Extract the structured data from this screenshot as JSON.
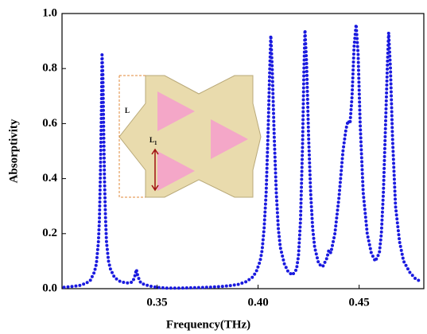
{
  "chart_data": {
    "type": "line",
    "xlabel": "Frequency(THz)",
    "ylabel": "Absorptivity",
    "x": [
      0.304,
      0.308,
      0.312,
      0.315,
      0.317,
      0.319,
      0.32,
      0.321,
      0.3215,
      0.322,
      0.3225,
      0.3228,
      0.3232,
      0.3236,
      0.324,
      0.3245,
      0.325,
      0.326,
      0.327,
      0.329,
      0.332,
      0.336,
      0.338,
      0.339,
      0.3398,
      0.3405,
      0.342,
      0.346,
      0.35,
      0.355,
      0.36,
      0.365,
      0.37,
      0.375,
      0.38,
      0.385,
      0.39,
      0.394,
      0.397,
      0.399,
      0.401,
      0.402,
      0.403,
      0.404,
      0.405,
      0.4057,
      0.4063,
      0.407,
      0.408,
      0.409,
      0.41,
      0.411,
      0.413,
      0.415,
      0.417,
      0.419,
      0.42,
      0.421,
      0.422,
      0.4227,
      0.4232,
      0.424,
      0.425,
      0.426,
      0.427,
      0.428,
      0.43,
      0.432,
      0.434,
      0.435,
      0.436,
      0.438,
      0.44,
      0.442,
      0.4435,
      0.4445,
      0.4455,
      0.4465,
      0.4475,
      0.4485,
      0.4495,
      0.4505,
      0.452,
      0.454,
      0.456,
      0.458,
      0.46,
      0.461,
      0.462,
      0.463,
      0.464,
      0.4646,
      0.4655,
      0.4665,
      0.468,
      0.47,
      0.472,
      0.475,
      0.478,
      0.481
    ],
    "series": [
      {
        "color": "#1a1adf",
        "values": [
          0.005,
          0.008,
          0.012,
          0.02,
          0.03,
          0.06,
          0.09,
          0.17,
          0.25,
          0.42,
          0.65,
          0.85,
          0.78,
          0.58,
          0.4,
          0.26,
          0.17,
          0.1,
          0.07,
          0.04,
          0.025,
          0.02,
          0.025,
          0.045,
          0.07,
          0.045,
          0.02,
          0.01,
          0.005,
          0.002,
          0.002,
          0.003,
          0.004,
          0.005,
          0.007,
          0.01,
          0.015,
          0.025,
          0.04,
          0.06,
          0.1,
          0.14,
          0.22,
          0.35,
          0.58,
          0.78,
          0.92,
          0.8,
          0.55,
          0.35,
          0.22,
          0.15,
          0.09,
          0.06,
          0.05,
          0.07,
          0.12,
          0.25,
          0.52,
          0.8,
          0.94,
          0.82,
          0.55,
          0.35,
          0.22,
          0.15,
          0.09,
          0.08,
          0.11,
          0.14,
          0.13,
          0.2,
          0.33,
          0.5,
          0.58,
          0.61,
          0.6,
          0.7,
          0.88,
          0.96,
          0.85,
          0.6,
          0.35,
          0.2,
          0.13,
          0.1,
          0.13,
          0.2,
          0.35,
          0.58,
          0.82,
          0.93,
          0.8,
          0.55,
          0.3,
          0.17,
          0.1,
          0.06,
          0.035,
          0.025
        ]
      }
    ],
    "xlim": [
      0.303,
      0.482
    ],
    "ylim": [
      0,
      1
    ],
    "xticks": [
      0.35,
      {
        "value": 0.4,
        "label": "0.40"
      },
      0.45
    ],
    "yticks": [
      {
        "value": 0,
        "label": "0.0"
      },
      0.2,
      0.4,
      0.6,
      0.8,
      {
        "value": 1,
        "label": "1.0"
      }
    ],
    "annotations": [
      {
        "text": "L"
      },
      {
        "text": "L",
        "sub": "1"
      }
    ]
  }
}
